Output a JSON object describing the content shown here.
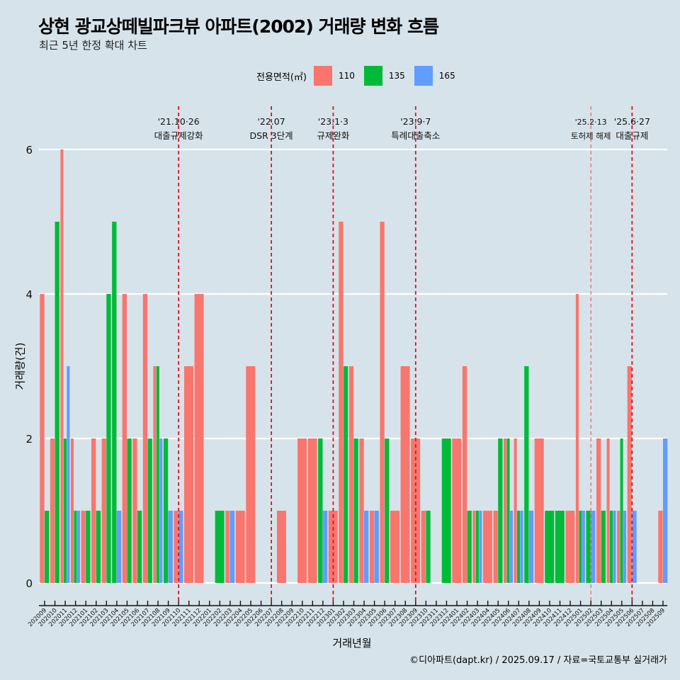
{
  "title": "상현 광교상떼빌파크뷰 아파트(2002) 거래량 변화 흐름",
  "subtitle": "최근 5년 한정 확대 차트",
  "caption": "©디아파트(dapt.kr) / 2025.09.17 / 자료=국토교통부 실거래가",
  "legend": {
    "title": "전용면적(㎡)",
    "items": [
      {
        "label": "110",
        "color": "#f8766d"
      },
      {
        "label": "135",
        "color": "#00ba38"
      },
      {
        "label": "165",
        "color": "#619cff"
      }
    ]
  },
  "chart_data": {
    "type": "bar",
    "title": "상현 광교상떼빌파크뷰 아파트(2002) 거래량 변화 흐름",
    "xlabel": "거래년월",
    "ylabel": "거래량(건)",
    "ylim": [
      0,
      6
    ],
    "yticks": [
      0,
      2,
      4,
      6
    ],
    "grid": true,
    "legend_position": "top",
    "categories": [
      "202009",
      "202010",
      "202011",
      "202012",
      "202101",
      "202102",
      "202103",
      "202104",
      "202105",
      "202106",
      "202107",
      "202108",
      "202109",
      "202110",
      "202111",
      "202112",
      "202201",
      "202202",
      "202203",
      "202204",
      "202205",
      "202206",
      "202207",
      "202208",
      "202209",
      "202210",
      "202211",
      "202212",
      "202301",
      "202302",
      "202303",
      "202304",
      "202305",
      "202306",
      "202307",
      "202308",
      "202309",
      "202310",
      "202311",
      "202312",
      "202401",
      "202402",
      "202403",
      "202404",
      "202405",
      "202406",
      "202407",
      "202408",
      "202409",
      "202410",
      "202411",
      "202412",
      "202501",
      "202502",
      "202503",
      "202504",
      "202505",
      "202506",
      "202507",
      "202508",
      "202509"
    ],
    "series": [
      {
        "name": "110",
        "color": "#f8766d",
        "values": [
          4,
          2,
          6,
          2,
          1,
          2,
          2,
          null,
          4,
          2,
          4,
          3,
          null,
          1,
          3,
          4,
          null,
          null,
          1,
          1,
          3,
          null,
          null,
          1,
          null,
          2,
          2,
          null,
          1,
          5,
          3,
          2,
          1,
          5,
          1,
          3,
          2,
          1,
          null,
          null,
          2,
          3,
          1,
          1,
          1,
          2,
          2,
          null,
          2,
          null,
          null,
          1,
          4,
          null,
          2,
          2,
          1,
          3,
          null,
          null,
          1
        ]
      },
      {
        "name": "135",
        "color": "#00ba38",
        "values": [
          1,
          5,
          2,
          1,
          1,
          1,
          4,
          5,
          2,
          1,
          2,
          3,
          2,
          null,
          null,
          null,
          null,
          1,
          null,
          null,
          null,
          null,
          null,
          null,
          null,
          null,
          null,
          2,
          null,
          3,
          2,
          null,
          null,
          2,
          null,
          null,
          null,
          1,
          null,
          2,
          null,
          1,
          1,
          null,
          2,
          2,
          1,
          3,
          null,
          1,
          1,
          null,
          1,
          1,
          1,
          1,
          2,
          null,
          null,
          null,
          null
        ]
      },
      {
        "name": "165",
        "color": "#619cff",
        "values": [
          null,
          null,
          3,
          1,
          null,
          null,
          null,
          1,
          null,
          null,
          null,
          2,
          1,
          1,
          null,
          null,
          null,
          null,
          1,
          null,
          null,
          null,
          null,
          null,
          null,
          null,
          null,
          1,
          null,
          null,
          null,
          1,
          1,
          null,
          null,
          null,
          null,
          null,
          null,
          null,
          null,
          null,
          1,
          null,
          null,
          1,
          1,
          1,
          null,
          null,
          null,
          null,
          1,
          1,
          null,
          1,
          1,
          1,
          null,
          null,
          2
        ]
      }
    ],
    "events": [
      {
        "month": "202110",
        "date": "'21.10·26",
        "label": "대출규제강화",
        "style": "bold"
      },
      {
        "month": "202207",
        "date": "'22.07",
        "label": "DSR 3단계",
        "style": "bold"
      },
      {
        "month": "202301",
        "date": "'23.1·3",
        "label": "규제완화",
        "style": "bold"
      },
      {
        "month": "202309",
        "date": "'23.9·7",
        "label": "특례대출축소",
        "style": "bold"
      },
      {
        "month": "202502",
        "date": "'25.2·13",
        "label": "토허제 해제",
        "style": "thin"
      },
      {
        "month": "202506",
        "date": "'25.6·27",
        "label": "대출규제",
        "style": "bold"
      }
    ]
  }
}
